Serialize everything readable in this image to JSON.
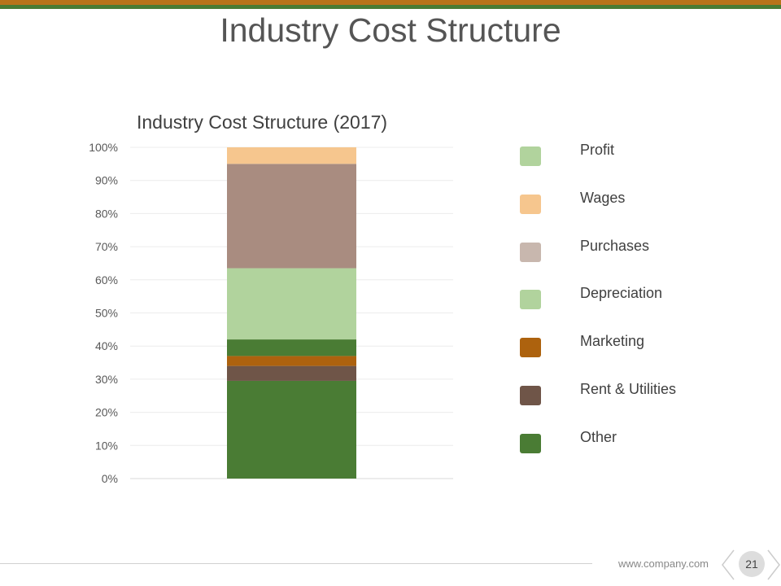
{
  "slide": {
    "title": "Industry Cost Structure",
    "footer_url": "www.company.com",
    "page_number": "21"
  },
  "colors": {
    "accent_brown": "#b8741a",
    "accent_green": "#4a7c34"
  },
  "chart_data": {
    "type": "bar",
    "stacked": true,
    "title": "Industry Cost Structure (2017)",
    "xlabel": "",
    "ylabel": "",
    "ylim": [
      0,
      100
    ],
    "yticks": [
      "0%",
      "10%",
      "20%",
      "30%",
      "40%",
      "50%",
      "60%",
      "70%",
      "80%",
      "90%",
      "100%"
    ],
    "categories": [
      ""
    ],
    "grid": true,
    "legend_position": "right",
    "series": [
      {
        "name": "Other",
        "values": [
          29.5
        ],
        "color": "#4a7c34"
      },
      {
        "name": "Rent & Utilities",
        "values": [
          4.5
        ],
        "color": "#6f5548"
      },
      {
        "name": "Marketing",
        "values": [
          3
        ],
        "color": "#ad620e"
      },
      {
        "name": "Other",
        "values": [
          5
        ],
        "color": "#4a7c34"
      },
      {
        "name": "Depreciation",
        "values": [
          21.5
        ],
        "color": "#b1d39d"
      },
      {
        "name": "Purchases",
        "values": [
          31.5
        ],
        "color": "#a98c80"
      },
      {
        "name": "Wages",
        "values": [
          5
        ],
        "color": "#f6c68e"
      }
    ],
    "legend": [
      {
        "label": "Profit",
        "color": "#b1d39d"
      },
      {
        "label": "Wages",
        "color": "#f6c68e"
      },
      {
        "label": "Purchases",
        "color": "#c8b7ae"
      },
      {
        "label": "Depreciation",
        "color": "#b1d39d"
      },
      {
        "label": "Marketing",
        "color": "#ad620e"
      },
      {
        "label": "Rent & Utilities",
        "color": "#6f5548"
      },
      {
        "label": "Other",
        "color": "#4a7c34"
      }
    ]
  }
}
